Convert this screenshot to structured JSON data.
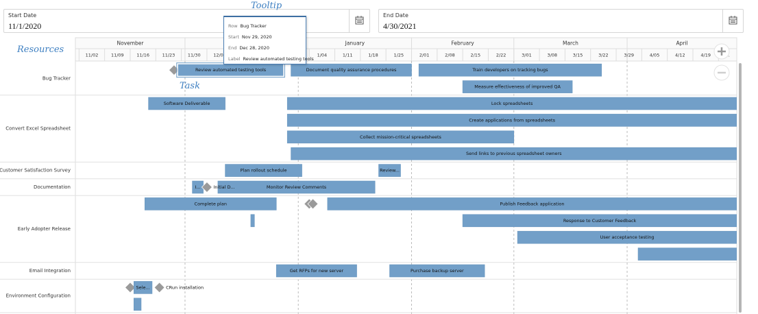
{
  "start_field": {
    "label": "Start Date",
    "value": "11/1/2020"
  },
  "end_field": {
    "label": "End Date",
    "value": "4/30/2021"
  },
  "annotations": {
    "tooltip": "Tooltip",
    "resources": "Resources",
    "task": "Task"
  },
  "timeline": {
    "months": [
      "November",
      "December",
      "January",
      "February",
      "March",
      "April"
    ],
    "weeks": [
      "11/02",
      "11/09",
      "11/16",
      "11/23",
      "11/30",
      "12/07",
      "12/14",
      "12/21",
      "12/28",
      "1/04",
      "1/11",
      "1/18",
      "1/25",
      "2/01",
      "2/08",
      "2/15",
      "2/22",
      "3/01",
      "3/08",
      "3/15",
      "3/22",
      "3/29",
      "4/05",
      "4/12",
      "4/19",
      "4."
    ]
  },
  "tooltip": {
    "rows": [
      {
        "key": "Row",
        "value": "Bug Tracker"
      },
      {
        "key": "Start",
        "value": "Nov 29, 2020"
      },
      {
        "key": "End",
        "value": "Dec 28, 2020"
      },
      {
        "key": "Label",
        "value": "Review automated testing tools"
      }
    ]
  },
  "rows": [
    {
      "name": "Bug Tracker",
      "lanes": [
        [
          {
            "date": "2020-11-28"
          },
          {
            "start": "2020-11-29",
            "end": "2020-12-28",
            "label": "Review automated testing tools",
            "selected": true
          },
          {
            "start": "2020-12-30",
            "end": "2021-02-01",
            "label": "Document quality assurance procedures"
          },
          {
            "start": "2021-02-03",
            "end": "2021-03-25",
            "label": "Train developers on tracking bugs"
          }
        ],
        [
          {
            "start": "2021-02-15",
            "end": "2021-03-17",
            "label": "Measure effectiveness of improved QA"
          }
        ]
      ]
    },
    {
      "name": "Convert Excel Spreadsheet",
      "lanes": [
        [
          {
            "start": "2020-11-21",
            "end": "2020-12-12",
            "label": "Software Deliverable"
          },
          {
            "start": "2020-12-29",
            "end": "2021-06-14",
            "label": "Lock spreadsheets"
          }
        ],
        [
          {
            "start": "2020-12-29",
            "end": "2021-06-20",
            "label": "Create applications from spreadsheets"
          }
        ],
        [
          {
            "start": "2020-12-29",
            "end": "2021-03-01",
            "label": "Collect mission-critical spreadsheets"
          }
        ],
        [
          {
            "start": "2020-12-30",
            "end": "2021-06-16",
            "label": "Send links to previous spreadsheet owners"
          }
        ]
      ]
    },
    {
      "name": "Customer Satisfaction Survey",
      "lanes": [
        [
          {
            "start": "2020-12-12",
            "end": "2021-01-02",
            "label": "Plan rollout schedule"
          },
          {
            "start": "2021-01-23",
            "end": "2021-01-29",
            "label": "Review..."
          }
        ]
      ]
    },
    {
      "name": "Documentation",
      "lanes": [
        [
          {
            "start": "2020-12-03",
            "end": "2020-12-06",
            "label": "I..."
          },
          {
            "start": "2020-12-10",
            "end": "2021-01-22",
            "label": "Monitor Review Comments"
          },
          {
            "date": "2020-12-07",
            "label": "Initial D..."
          }
        ]
      ]
    },
    {
      "name": "Early Adopter Release",
      "lanes": [
        [
          {
            "start": "2020-11-20",
            "end": "2020-12-26",
            "label": "Complete plan"
          },
          {
            "date": "2021-01-04"
          },
          {
            "date": "2021-01-05"
          },
          {
            "start": "2021-01-09",
            "end": "2021-05-29",
            "label": "Publish Feedback application"
          }
        ],
        [
          {
            "start": "2020-12-19",
            "end": "2020-12-20"
          },
          {
            "start": "2021-02-15",
            "end": "2021-06-08",
            "label": "Response to Customer Feedback"
          }
        ],
        [
          {
            "start": "2021-03-02",
            "end": "2021-06-06",
            "label": "User acceptance testing"
          }
        ],
        [
          {
            "start": "2021-04-04",
            "end": "2021-06-30"
          }
        ]
      ]
    },
    {
      "name": "Email Integration",
      "lanes": [
        [
          {
            "start": "2020-12-26",
            "end": "2021-01-17",
            "label": "Get RFPs for new server"
          },
          {
            "start": "2021-01-26",
            "end": "2021-02-21",
            "label": "Purchase backup server"
          }
        ]
      ]
    },
    {
      "name": "Environment Configuration",
      "lanes": [
        [
          {
            "date": "2020-11-16"
          },
          {
            "start": "2020-11-17",
            "end": "2020-11-22",
            "label": "Sele..."
          },
          {
            "date": "2020-11-24",
            "label": "CRun installation"
          }
        ],
        [
          {
            "start": "2020-11-17",
            "end": "2020-11-19"
          }
        ]
      ]
    }
  ]
}
